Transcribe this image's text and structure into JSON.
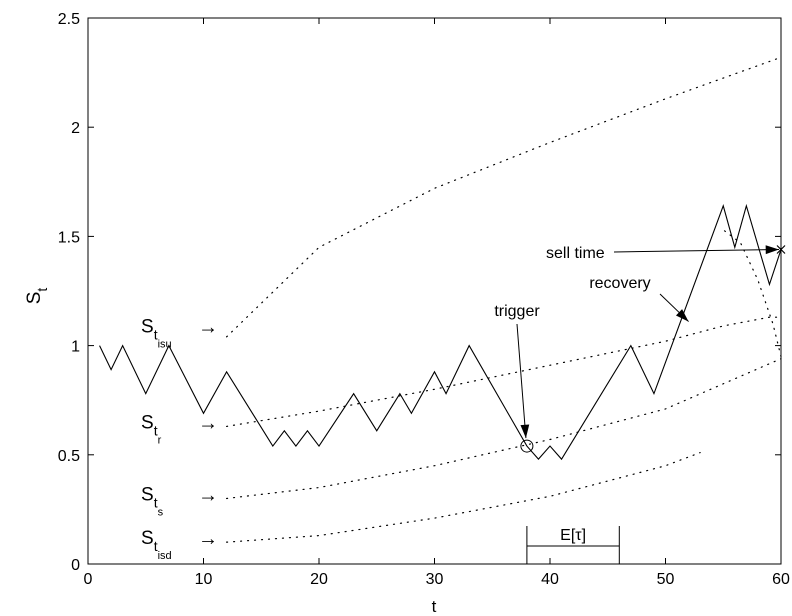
{
  "chart_data": {
    "type": "line",
    "title": "",
    "xlabel": "t",
    "ylabel": "S",
    "ylabel_sub": "t",
    "xlim": [
      0,
      60
    ],
    "ylim": [
      0,
      2.5
    ],
    "xticks": [
      0,
      10,
      20,
      30,
      40,
      50,
      60
    ],
    "yticks": [
      0,
      0.5,
      1,
      1.5,
      2,
      2.5
    ],
    "grid": false,
    "path": {
      "x": [
        1,
        2,
        3,
        5,
        7,
        10,
        12,
        16,
        17,
        18,
        19,
        20,
        23,
        25,
        27,
        28,
        30,
        31,
        33,
        38,
        39,
        40,
        41,
        47,
        49,
        55,
        56,
        57,
        59,
        60
      ],
      "y": [
        1.0,
        0.89,
        1.0,
        0.78,
        1.0,
        0.69,
        0.88,
        0.54,
        0.61,
        0.54,
        0.61,
        0.54,
        0.78,
        0.61,
        0.78,
        0.69,
        0.88,
        0.78,
        1.0,
        0.54,
        0.48,
        0.54,
        0.48,
        1.0,
        0.78,
        1.64,
        1.45,
        1.64,
        1.28,
        1.44
      ]
    },
    "boundaries": [
      {
        "x": [
          12,
          20,
          30,
          40,
          50,
          60
        ],
        "y": [
          1.04,
          1.45,
          1.72,
          1.93,
          2.13,
          2.32
        ]
      },
      {
        "x": [
          12,
          20,
          30,
          40,
          50,
          55,
          57,
          59,
          60
        ],
        "y": [
          0.63,
          0.7,
          0.8,
          0.91,
          1.02,
          1.09,
          1.11,
          1.13,
          1.13
        ]
      },
      {
        "x": [
          12,
          20,
          30,
          40,
          50,
          60
        ],
        "y": [
          0.3,
          0.35,
          0.45,
          0.57,
          0.71,
          0.94
        ]
      },
      {
        "x": [
          12,
          20,
          30,
          40,
          50,
          53
        ],
        "y": [
          0.1,
          0.13,
          0.21,
          0.31,
          0.45,
          0.51
        ]
      },
      {
        "x": [
          60,
          59.3,
          58,
          56.5,
          55
        ],
        "y": [
          0.95,
          1.1,
          1.3,
          1.47,
          1.53
        ]
      }
    ],
    "left_labels": [
      {
        "main": "S",
        "sub": "t",
        "subsub": "isu",
        "arrow": "→",
        "y": 1.07
      },
      {
        "main": "S",
        "sub": "t",
        "subsub": "r",
        "arrow": "→",
        "y": 0.63
      },
      {
        "main": "S",
        "sub": "t",
        "subsub": "s",
        "arrow": "→",
        "y": 0.3
      },
      {
        "main": "S",
        "sub": "t",
        "subsub": "isd",
        "arrow": "→",
        "y": 0.1
      }
    ],
    "annotations": {
      "trigger": {
        "label": "trigger",
        "point": [
          38,
          0.54
        ]
      },
      "recovery": {
        "label": "recovery",
        "point": [
          52,
          1.11
        ]
      },
      "sell_time": {
        "label": "sell time",
        "point": [
          60,
          1.44
        ]
      },
      "expected_tau": {
        "label": "E[τ]",
        "x_range": [
          38,
          46
        ]
      }
    }
  }
}
